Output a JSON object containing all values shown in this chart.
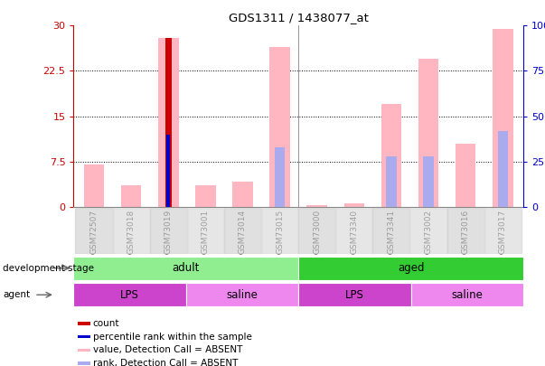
{
  "title": "GDS1311 / 1438077_at",
  "samples": [
    "GSM72507",
    "GSM73018",
    "GSM73019",
    "GSM73001",
    "GSM73014",
    "GSM73015",
    "GSM73000",
    "GSM73340",
    "GSM73341",
    "GSM73002",
    "GSM73016",
    "GSM73017"
  ],
  "pink_values": [
    7.0,
    3.5,
    28.0,
    3.5,
    4.2,
    26.5,
    0.3,
    0.5,
    17.0,
    24.5,
    10.5,
    29.5
  ],
  "blue_rank_pct": [
    0,
    0,
    0,
    0,
    0,
    33,
    0,
    0,
    28,
    28,
    0,
    42
  ],
  "red_count": [
    0,
    0,
    28.0,
    0,
    0,
    0,
    0,
    0,
    0,
    0,
    0,
    0
  ],
  "blue_percentile_pct": [
    0,
    0,
    40,
    0,
    0,
    0,
    0,
    0,
    0,
    0,
    0,
    0
  ],
  "ylim_left": [
    0,
    30
  ],
  "ylim_right": [
    0,
    100
  ],
  "yticks_left": [
    0,
    7.5,
    15,
    22.5,
    30
  ],
  "yticks_right": [
    0,
    25,
    50,
    75,
    100
  ],
  "ytick_labels_left": [
    "0",
    "7.5",
    "15",
    "22.5",
    "30"
  ],
  "ytick_labels_right": [
    "0",
    "25",
    "50",
    "75",
    "100%"
  ],
  "development_stage_groups": [
    {
      "label": "adult",
      "start": 0,
      "end": 6,
      "color": "#90EE90"
    },
    {
      "label": "aged",
      "start": 6,
      "end": 12,
      "color": "#33CC33"
    }
  ],
  "agent_groups": [
    {
      "label": "LPS",
      "start": 0,
      "end": 3,
      "color": "#CC44CC"
    },
    {
      "label": "saline",
      "start": 3,
      "end": 6,
      "color": "#EE88EE"
    },
    {
      "label": "LPS",
      "start": 6,
      "end": 9,
      "color": "#CC44CC"
    },
    {
      "label": "saline",
      "start": 9,
      "end": 12,
      "color": "#EE88EE"
    }
  ],
  "pink_color": "#FFB6C1",
  "light_blue_color": "#AAAAEE",
  "red_color": "#CC0000",
  "blue_color": "#0000CC",
  "bar_width": 0.55,
  "background_color": "#FFFFFF",
  "left_axis_color": "#CC0000",
  "right_axis_color": "#0000CC",
  "dev_stage_label": "development stage",
  "agent_label": "agent",
  "legend_items": [
    {
      "label": "count",
      "color": "#CC0000"
    },
    {
      "label": "percentile rank within the sample",
      "color": "#0000CC"
    },
    {
      "label": "value, Detection Call = ABSENT",
      "color": "#FFB6C1"
    },
    {
      "label": "rank, Detection Call = ABSENT",
      "color": "#AAAAEE"
    }
  ]
}
